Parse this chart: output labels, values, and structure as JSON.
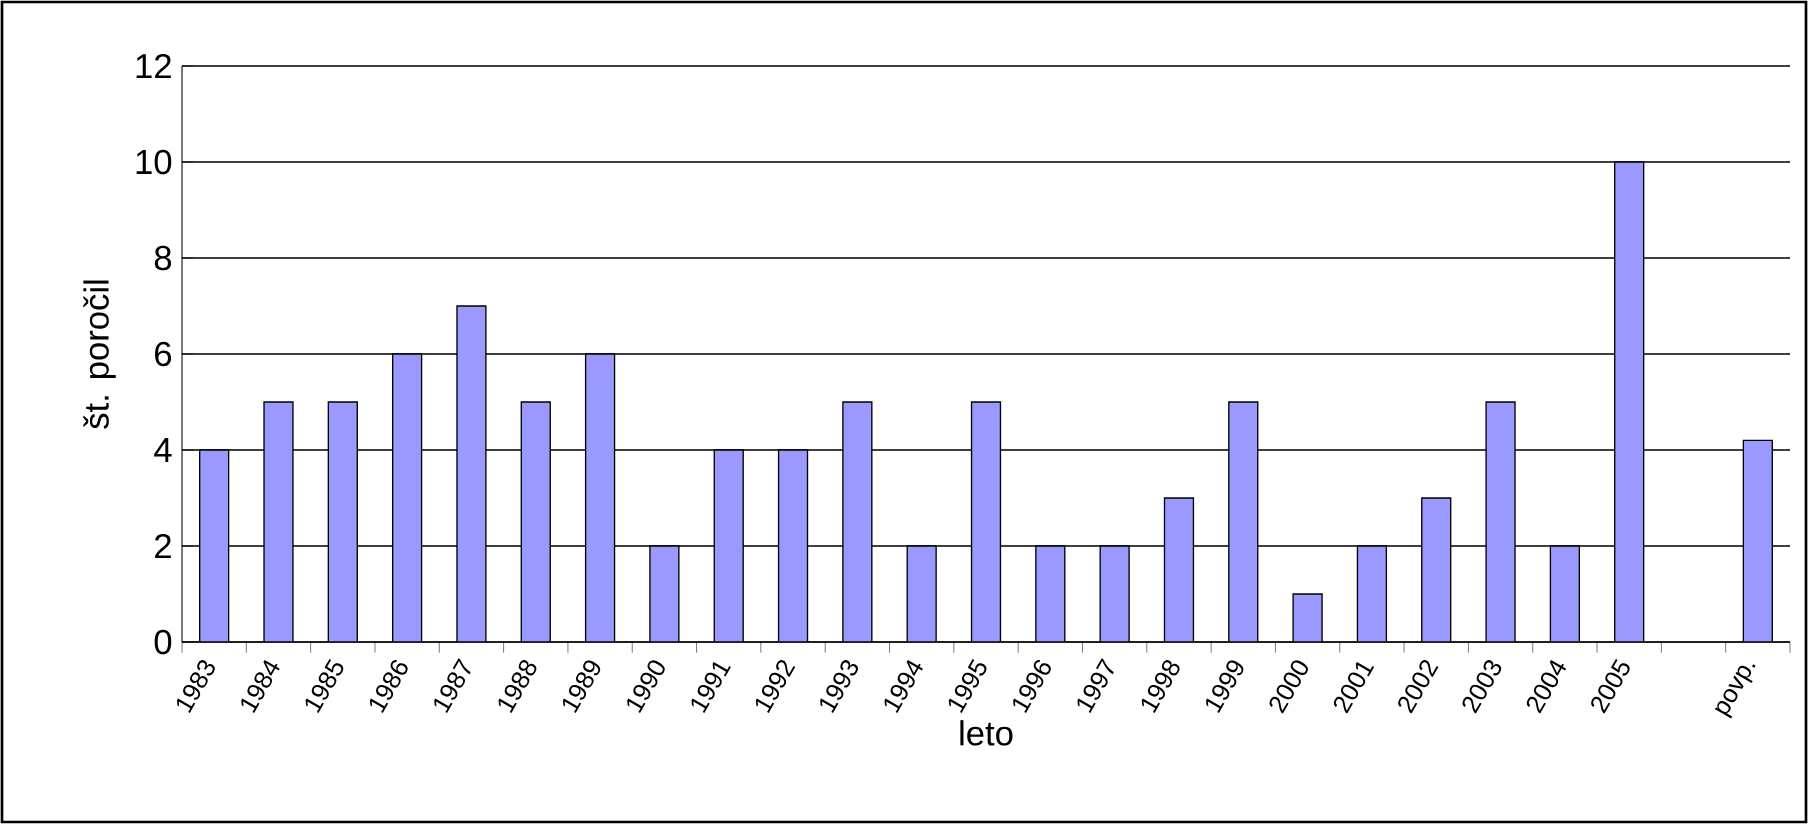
{
  "chart_data": {
    "type": "bar",
    "xlabel": "leto",
    "ylabel": "št. poročil",
    "categories": [
      "1983",
      "1984",
      "1985",
      "1986",
      "1987",
      "1988",
      "1989",
      "1990",
      "1991",
      "1992",
      "1993",
      "1994",
      "1995",
      "1996",
      "1997",
      "1998",
      "1999",
      "2000",
      "2001",
      "2002",
      "2003",
      "2004",
      "2005",
      null,
      "povp."
    ],
    "values": [
      4,
      5,
      5,
      6,
      7,
      5,
      6,
      2,
      4,
      4,
      5,
      2,
      5,
      2,
      2,
      3,
      5,
      1,
      2,
      3,
      5,
      2,
      10,
      null,
      4.2
    ],
    "color": "#9999ff",
    "ylim": [
      0,
      12
    ],
    "yticks": [
      0,
      2,
      4,
      6,
      8,
      10,
      12
    ],
    "grid": "y"
  }
}
